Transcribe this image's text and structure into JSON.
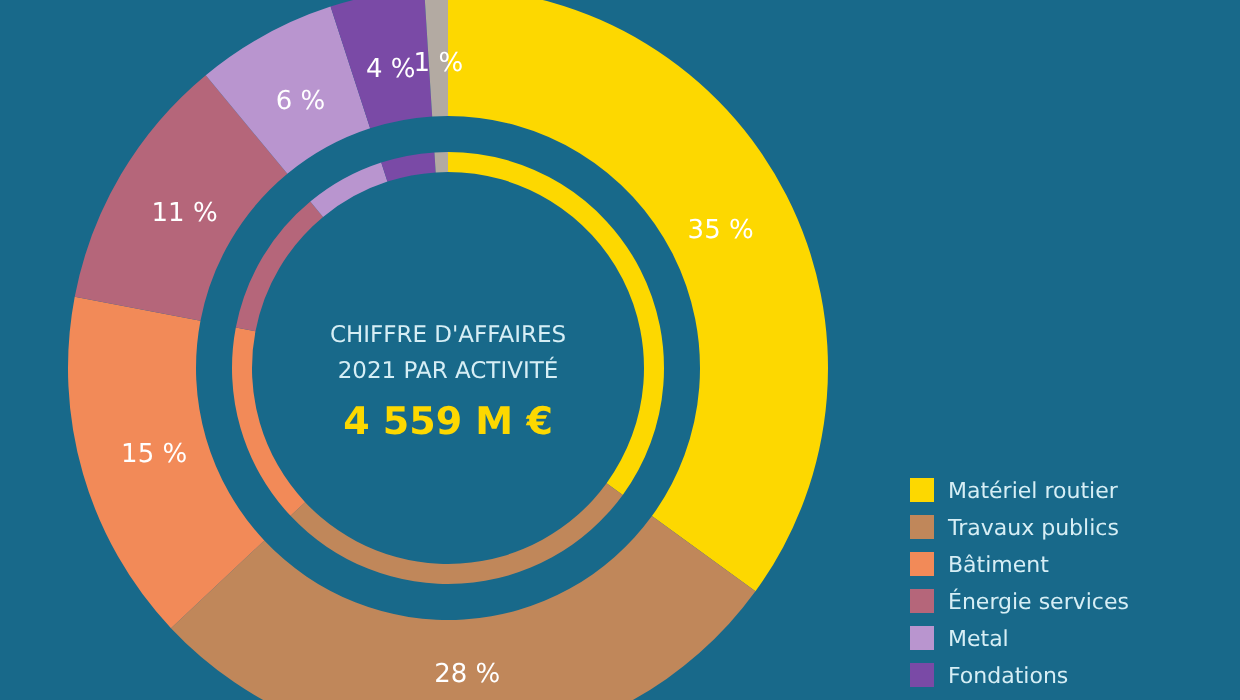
{
  "chart_data": {
    "type": "donut",
    "title": "CHIFFRE D'AFFAIRES",
    "subtitle": "2021 PAR ACTIVITÉ",
    "annotations": [
      "4 559 M €"
    ],
    "categories": [
      "Matériel routier",
      "Travaux publics",
      "Bâtiment",
      "Énergie services",
      "Metal",
      "Fondations",
      null
    ],
    "series": [
      {
        "values": [
          35,
          28,
          15,
          11,
          6,
          4,
          1
        ]
      },
      {
        "values": [
          35,
          28,
          15,
          11,
          6,
          4,
          1
        ]
      }
    ],
    "value_labels": [
      "35 %",
      "28 %",
      "15 %",
      "11 %",
      "6 %",
      "4 %",
      "1 %"
    ],
    "colors": [
      "#fdd800",
      "#c0875a",
      "#f28a58",
      "#b5667a",
      "#b995cf",
      "#7a4aa6",
      "#b3aaa2"
    ],
    "legend": "bottom right"
  }
}
